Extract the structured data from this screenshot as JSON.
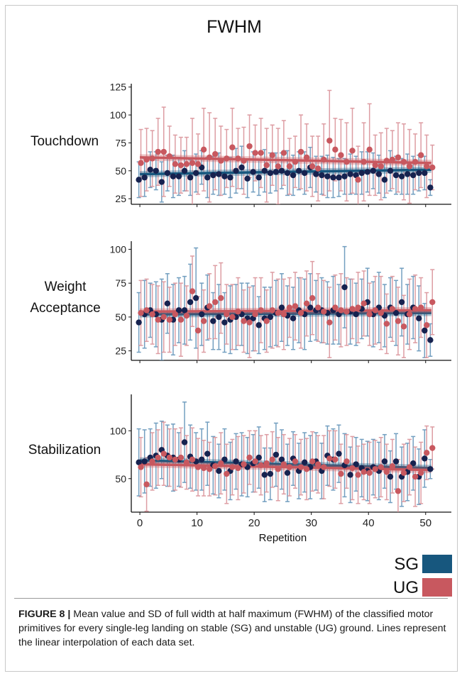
{
  "title": "FWHM",
  "colors": {
    "SG": "#17577e",
    "UG": "#c8585f",
    "SG_point": "#16224f",
    "SG_bar": "#5b8fb6",
    "UG_bar": "#d88c93"
  },
  "legend": {
    "sg": "SG",
    "ug": "UG"
  },
  "caption": {
    "label": "FIGURE 8 |",
    "text": " Mean value and SD of full width at half maximum (FWHM) of the classified motor primitives for every single-leg landing on stable (SG) and unstable (UG) ground. Lines represent the linear interpolation of each data set."
  },
  "chart_data": [
    {
      "type": "scatter",
      "panel_label": [
        "Touchdown"
      ],
      "xlabel": "",
      "ylim": [
        20,
        128
      ],
      "yticks": [
        25,
        50,
        75,
        100,
        125
      ],
      "xlim": [
        -1.5,
        54.5
      ],
      "series": [
        {
          "name": "SG",
          "mean": [
            42,
            44,
            51,
            50,
            40,
            48,
            45,
            45,
            50,
            44,
            48,
            53,
            44,
            46,
            47,
            45,
            44,
            50,
            53,
            43,
            49,
            44,
            50,
            48,
            49,
            50,
            48,
            46,
            50,
            48,
            53,
            47,
            46,
            45,
            44,
            44,
            45,
            47,
            46,
            48,
            49,
            50,
            47,
            42,
            50,
            46,
            45,
            47,
            46,
            48,
            48,
            35
          ],
          "sd": [
            16,
            17,
            16,
            17,
            18,
            16,
            19,
            17,
            18,
            16,
            17,
            15,
            18,
            17,
            19,
            16,
            18,
            20,
            19,
            17,
            18,
            16,
            19,
            18,
            17,
            16,
            20,
            18,
            17,
            19,
            18,
            16,
            17,
            19,
            18,
            17,
            16,
            18,
            17,
            19,
            18,
            16,
            17,
            16,
            18,
            17,
            16,
            18,
            17,
            16,
            15,
            7
          ],
          "trend": [
            47,
            51
          ]
        },
        {
          "name": "UG",
          "mean": [
            57,
            60,
            61,
            67,
            67,
            63,
            56,
            55,
            56,
            57,
            56,
            69,
            62,
            65,
            59,
            61,
            71,
            61,
            59,
            72,
            66,
            66,
            55,
            64,
            54,
            66,
            54,
            58,
            67,
            62,
            54,
            52,
            60,
            77,
            69,
            64,
            58,
            68,
            42,
            58,
            69,
            55,
            54,
            59,
            60,
            62,
            58,
            54,
            58,
            64,
            54,
            53
          ],
          "sd": [
            30,
            28,
            25,
            30,
            40,
            27,
            26,
            25,
            24,
            40,
            27,
            37,
            40,
            32,
            31,
            26,
            35,
            27,
            30,
            28,
            25,
            31,
            33,
            27,
            34,
            29,
            25,
            23,
            33,
            30,
            27,
            29,
            32,
            45,
            28,
            32,
            35,
            38,
            30,
            35,
            41,
            27,
            30,
            29,
            26,
            31,
            34,
            33,
            25,
            29,
            28,
            20
          ],
          "trend": [
            62,
            57
          ]
        }
      ]
    },
    {
      "type": "scatter",
      "panel_label": [
        "Weight",
        "Acceptance"
      ],
      "xlabel": "",
      "ylim": [
        18,
        106
      ],
      "yticks": [
        25,
        50,
        75,
        100
      ],
      "xlim": [
        -1.5,
        54.5
      ],
      "series": [
        {
          "name": "SG",
          "mean": [
            46,
            52,
            55,
            52,
            48,
            60,
            48,
            55,
            55,
            61,
            64,
            52,
            57,
            47,
            50,
            46,
            48,
            50,
            52,
            49,
            49,
            44,
            49,
            50,
            53,
            57,
            51,
            49,
            55,
            52,
            57,
            55,
            55,
            53,
            55,
            52,
            72,
            54,
            52,
            56,
            61,
            52,
            57,
            51,
            57,
            53,
            61,
            52,
            57,
            49,
            40,
            33
          ],
          "sd": [
            22,
            25,
            20,
            24,
            30,
            22,
            26,
            24,
            25,
            28,
            37,
            23,
            24,
            21,
            24,
            22,
            25,
            24,
            23,
            26,
            24,
            21,
            23,
            22,
            24,
            25,
            22,
            23,
            24,
            26,
            25,
            22,
            24,
            23,
            25,
            22,
            30,
            24,
            23,
            22,
            25,
            24,
            26,
            23,
            22,
            24,
            25,
            22,
            23,
            24,
            20,
            12
          ],
          "trend": [
            52,
            53
          ]
        },
        {
          "name": "UG",
          "mean": [
            53,
            55,
            52,
            48,
            50,
            48,
            52,
            48,
            51,
            69,
            40,
            47,
            58,
            61,
            64,
            52,
            50,
            54,
            47,
            46,
            52,
            55,
            47,
            55,
            53,
            52,
            57,
            58,
            53,
            60,
            64,
            57,
            54,
            46,
            57,
            55,
            54,
            56,
            57,
            60,
            52,
            55,
            53,
            45,
            56,
            47,
            43,
            52,
            56,
            57,
            44,
            61
          ],
          "sd": [
            24,
            23,
            22,
            25,
            26,
            24,
            23,
            27,
            22,
            26,
            25,
            23,
            24,
            27,
            26,
            22,
            24,
            25,
            23,
            26,
            27,
            24,
            23,
            28,
            25,
            26,
            22,
            25,
            26,
            24,
            27,
            25,
            23,
            26,
            24,
            27,
            25,
            22,
            26,
            24,
            23,
            25,
            27,
            22,
            24,
            25,
            23,
            26,
            25,
            22,
            24,
            24
          ],
          "trend": [
            54,
            55
          ]
        }
      ]
    },
    {
      "type": "scatter",
      "panel_label": [
        "Stabilization"
      ],
      "xlabel": "Repetition",
      "ylim": [
        15,
        138
      ],
      "yticks": [
        50,
        100
      ],
      "xticks": [
        0,
        10,
        20,
        30,
        40,
        50
      ],
      "xlim": [
        -1.5,
        54.5
      ],
      "series": [
        {
          "name": "SG",
          "mean": [
            67,
            68,
            72,
            74,
            80,
            74,
            72,
            70,
            88,
            73,
            68,
            70,
            76,
            64,
            58,
            70,
            58,
            68,
            65,
            62,
            66,
            72,
            54,
            55,
            75,
            70,
            56,
            71,
            58,
            67,
            62,
            68,
            58,
            74,
            70,
            76,
            64,
            54,
            65,
            61,
            58,
            62,
            58,
            68,
            52,
            68,
            52,
            57,
            66,
            52,
            71,
            60
          ],
          "sd": [
            35,
            33,
            30,
            34,
            30,
            32,
            35,
            28,
            42,
            33,
            30,
            32,
            33,
            30,
            28,
            32,
            30,
            29,
            33,
            31,
            30,
            32,
            28,
            27,
            33,
            31,
            30,
            28,
            29,
            31,
            33,
            30,
            29,
            31,
            32,
            30,
            33,
            29,
            28,
            30,
            31,
            29,
            30,
            28,
            27,
            29,
            31,
            30,
            28,
            29,
            30,
            10
          ],
          "trend": [
            69,
            61
          ]
        },
        {
          "name": "UG",
          "mean": [
            62,
            44,
            68,
            72,
            76,
            72,
            70,
            72,
            67,
            70,
            62,
            61,
            60,
            63,
            66,
            55,
            62,
            61,
            65,
            72,
            68,
            64,
            66,
            70,
            60,
            65,
            62,
            68,
            62,
            60,
            68,
            65,
            62,
            71,
            70,
            55,
            68,
            61,
            54,
            57,
            56,
            60,
            62,
            57,
            63,
            37,
            56,
            62,
            52,
            56,
            77,
            82
          ],
          "sd": [
            31,
            28,
            30,
            29,
            33,
            30,
            32,
            31,
            28,
            33,
            30,
            29,
            28,
            30,
            32,
            31,
            29,
            33,
            30,
            28,
            32,
            31,
            30,
            29,
            33,
            31,
            30,
            28,
            29,
            32,
            31,
            30,
            33,
            29,
            30,
            31,
            28,
            33,
            30,
            29,
            32,
            30,
            31,
            29,
            28,
            33,
            30,
            29,
            31,
            32,
            28,
            22
          ],
          "trend": [
            65,
            59
          ]
        }
      ]
    }
  ]
}
